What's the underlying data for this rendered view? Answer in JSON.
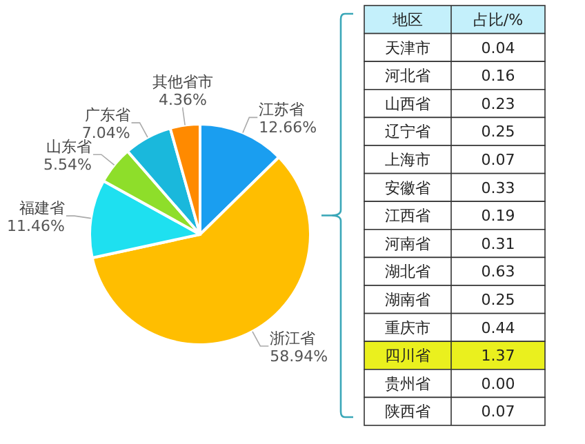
{
  "chart_data": [
    {
      "type": "pie",
      "categories": [
        "江苏省",
        "浙江省",
        "福建省",
        "山东省",
        "广东省",
        "其他省市"
      ],
      "values": [
        12.66,
        58.94,
        11.46,
        5.54,
        7.04,
        4.36
      ],
      "value_labels": [
        "12.66%",
        "58.94%",
        "11.46%",
        "5.54%",
        "7.04%",
        "4.36%"
      ],
      "colors": [
        "#1a9ef0",
        "#ffbe00",
        "#1ee0f0",
        "#8ede2a",
        "#1ab8dc",
        "#ff8a00"
      ]
    },
    {
      "type": "other",
      "xlabel": "地区",
      "ylabel": "占比/%",
      "categories": [
        "天津市",
        "河北省",
        "山西省",
        "辽宁省",
        "上海市",
        "安徽省",
        "江西省",
        "河南省",
        "湖北省",
        "湖南省",
        "重庆市",
        "四川省",
        "贵州省",
        "陕西省"
      ],
      "value_labels": [
        "0.04",
        "0.16",
        "0.23",
        "0.25",
        "0.07",
        "0.33",
        "0.19",
        "0.31",
        "0.63",
        "0.25",
        "0.44",
        "1.37",
        "0.00",
        "0.07"
      ],
      "colors": [
        "#ffffff",
        "#ffffff",
        "#ffffff",
        "#ffffff",
        "#ffffff",
        "#ffffff",
        "#ffffff",
        "#ffffff",
        "#ffffff",
        "#ffffff",
        "#ffffff",
        "#eaf01e",
        "#ffffff",
        "#ffffff"
      ]
    }
  ]
}
